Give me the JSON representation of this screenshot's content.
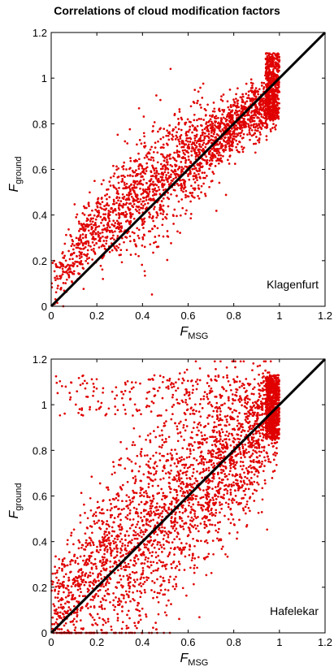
{
  "figure": {
    "title": "Correlations of cloud modification factors"
  },
  "chart_data": [
    {
      "type": "scatter",
      "panel_label": "Klagenfurt",
      "xlabel_main": "F",
      "xlabel_sub": "MSG",
      "ylabel_main": "F",
      "ylabel_sub": "ground",
      "xlim": [
        0,
        1.2
      ],
      "ylim": [
        0,
        1.2
      ],
      "xticks": [
        "0",
        "0.2",
        "0.4",
        "0.6",
        "0.8",
        "1",
        "1.2"
      ],
      "yticks": [
        "0",
        "0.2",
        "0.4",
        "0.6",
        "0.8",
        "1",
        "1.2"
      ],
      "reference_line": {
        "x": [
          0,
          1.2
        ],
        "y": [
          0,
          1.2
        ],
        "color": "#000000"
      },
      "series_color": "#e00000",
      "grid": false,
      "points_description": "dense red points; approx. 2800 samples; clustered around y ≈ x with upward bias at low x and saturating near y≈0.8–1.1 at x≈0.9–1.0"
    },
    {
      "type": "scatter",
      "panel_label": "Hafelekar",
      "xlabel_main": "F",
      "xlabel_sub": "MSG",
      "ylabel_main": "F",
      "ylabel_sub": "ground",
      "xlim": [
        0,
        1.2
      ],
      "ylim": [
        0,
        1.2
      ],
      "xticks": [
        "0",
        "0.2",
        "0.4",
        "0.6",
        "0.8",
        "1",
        "1.2"
      ],
      "yticks": [
        "0",
        "0.2",
        "0.4",
        "0.6",
        "0.8",
        "1",
        "1.2"
      ],
      "reference_line": {
        "x": [
          0,
          1.2
        ],
        "y": [
          0,
          1.2
        ],
        "color": "#000000"
      },
      "series_color": "#e00000",
      "grid": false,
      "points_description": "dense red points; approx. 3600 samples; broad scatter over y 0.05–1.15 for x 0–1, heavy column at x≈1.0 with y 0.85–1.12"
    }
  ]
}
